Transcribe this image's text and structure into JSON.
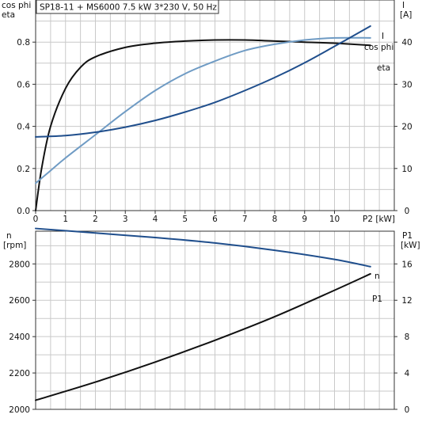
{
  "title": "SP18-11 + MS6000   7.5 kW   3*230 V, 50 Hz",
  "colors": {
    "black": "#111111",
    "navy": "#1f4e8c",
    "lightblue": "#6f9bc4"
  },
  "chart_data": [
    {
      "type": "line",
      "xlabel": "P2 [kW]",
      "xlim": [
        0,
        12
      ],
      "x_ticks": [
        "0",
        "1",
        "2",
        "3",
        "4",
        "5",
        "6",
        "7",
        "8",
        "9",
        "10"
      ],
      "left_axis": {
        "label_lines": [
          "cos phi",
          "eta"
        ],
        "ylim": [
          0,
          1
        ],
        "ticks": [
          "0.0",
          "0.2",
          "0.4",
          "0.6",
          "0.8"
        ]
      },
      "right_axis": {
        "label_lines": [
          "I",
          "[A]"
        ],
        "ylim": [
          0,
          50
        ],
        "ticks": [
          "0",
          "10",
          "20",
          "30",
          "40"
        ]
      },
      "series": [
        {
          "name": "eta",
          "axis": "left",
          "color": "#111111",
          "x": [
            0,
            0.2,
            0.5,
            1,
            1.5,
            2,
            3,
            4,
            5,
            6,
            7,
            8,
            9,
            10,
            11.2
          ],
          "y": [
            0,
            0.2,
            0.4,
            0.58,
            0.68,
            0.73,
            0.775,
            0.795,
            0.805,
            0.81,
            0.81,
            0.805,
            0.8,
            0.795,
            0.785
          ]
        },
        {
          "name": "cos phi",
          "axis": "left",
          "color": "#6f9bc4",
          "x": [
            0,
            0.5,
            1,
            2,
            3,
            4,
            5,
            6,
            7,
            8,
            9,
            10,
            11.2
          ],
          "y": [
            0.13,
            0.19,
            0.25,
            0.36,
            0.47,
            0.57,
            0.65,
            0.71,
            0.76,
            0.79,
            0.81,
            0.82,
            0.82
          ]
        },
        {
          "name": "I",
          "axis": "right",
          "color": "#1f4e8c",
          "x": [
            0,
            1,
            2,
            3,
            4,
            5,
            6,
            7,
            8,
            9,
            10,
            11.2
          ],
          "y": [
            17.5,
            17.8,
            18.6,
            19.8,
            21.4,
            23.4,
            25.7,
            28.5,
            31.6,
            35.1,
            39.0,
            43.8
          ]
        }
      ]
    },
    {
      "type": "line",
      "xlim": [
        0,
        12
      ],
      "left_axis": {
        "label_lines": [
          "n",
          "[rpm]"
        ],
        "ylim": [
          2000,
          2980
        ],
        "ticks": [
          "2000",
          "2200",
          "2400",
          "2600",
          "2800"
        ]
      },
      "right_axis": {
        "label_lines": [
          "P1",
          "[kW]"
        ],
        "ylim": [
          0,
          19.6
        ],
        "ticks": [
          "0",
          "4",
          "8",
          "12",
          "16"
        ]
      },
      "series": [
        {
          "name": "n",
          "axis": "left",
          "color": "#1f4e8c",
          "x": [
            0,
            2,
            4,
            6,
            8,
            10,
            11.2
          ],
          "y": [
            2995,
            2970,
            2945,
            2915,
            2875,
            2825,
            2785
          ]
        },
        {
          "name": "P1",
          "axis": "right",
          "color": "#111111",
          "x": [
            0,
            2,
            4,
            6,
            8,
            10,
            11.2
          ],
          "y": [
            1.0,
            3.0,
            5.2,
            7.6,
            10.2,
            13.1,
            14.9
          ]
        }
      ]
    }
  ]
}
